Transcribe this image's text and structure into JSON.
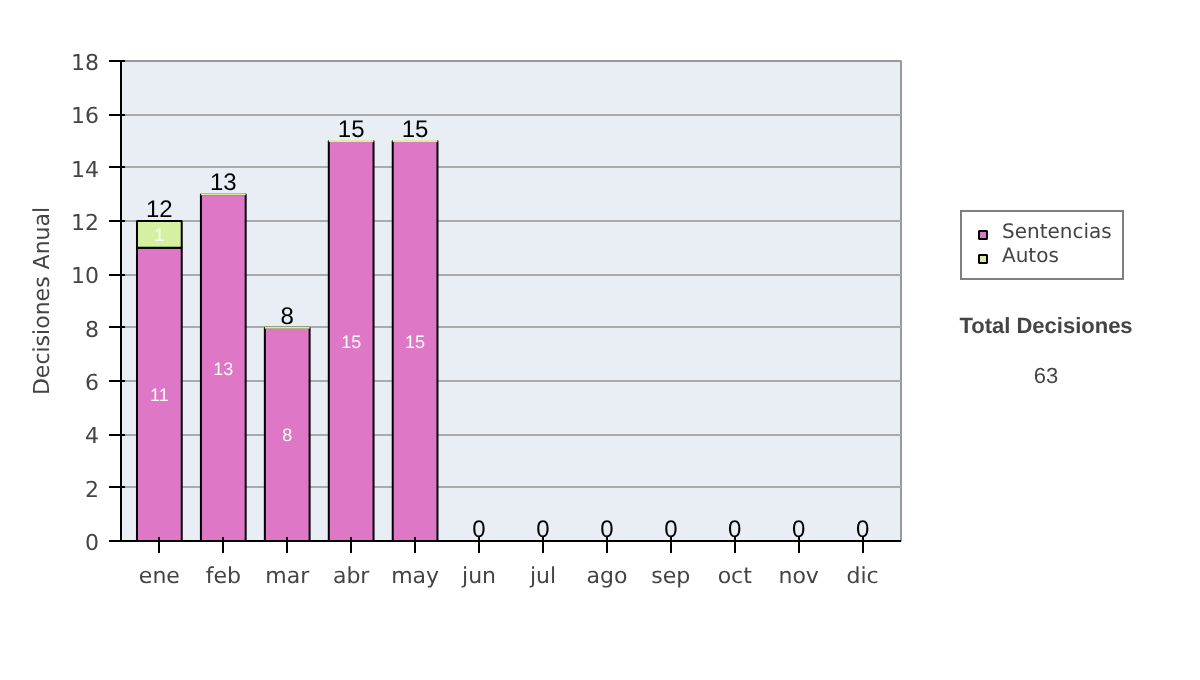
{
  "chart_data": {
    "type": "bar",
    "stacked": true,
    "ylabel": "Decisiones Anual",
    "categories": [
      "ene",
      "feb",
      "mar",
      "abr",
      "may",
      "jun",
      "jul",
      "ago",
      "sep",
      "oct",
      "nov",
      "dic"
    ],
    "series": [
      {
        "name": "Sentencias",
        "color": "#dd77c6",
        "values": [
          11,
          13,
          8,
          15,
          15,
          0,
          0,
          0,
          0,
          0,
          0,
          0
        ],
        "value_labels": [
          "11",
          "13",
          "8",
          "15",
          "15",
          null,
          null,
          null,
          null,
          null,
          null,
          null
        ]
      },
      {
        "name": "Autos",
        "color": "#d4f0a0",
        "values": [
          1,
          0,
          0,
          0,
          0,
          0,
          0,
          0,
          0,
          0,
          0,
          0
        ],
        "value_labels": [
          "1",
          null,
          null,
          null,
          null,
          null,
          null,
          null,
          null,
          null,
          null,
          null
        ]
      }
    ],
    "totals": [
      "12",
      "13",
      "8",
      "15",
      "15",
      "0",
      "0",
      "0",
      "0",
      "0",
      "0",
      "0"
    ],
    "ylim": [
      0,
      18
    ],
    "yticks": [
      0,
      2,
      4,
      6,
      8,
      10,
      12,
      14,
      16,
      18
    ],
    "grid": "y",
    "legend": "right",
    "annotations": [
      "Total Decisiones",
      "63"
    ]
  }
}
